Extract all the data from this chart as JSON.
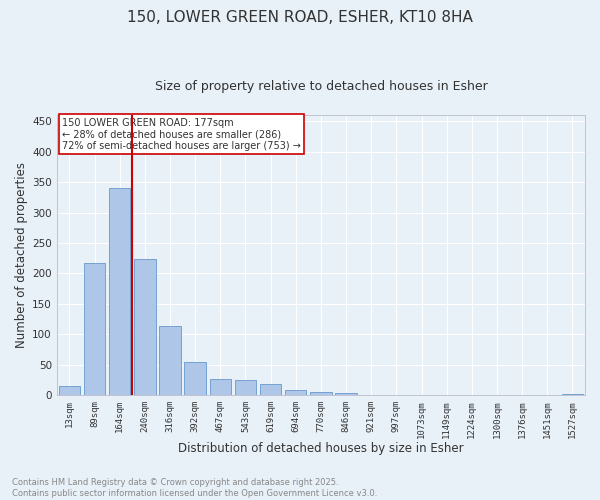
{
  "title1": "150, LOWER GREEN ROAD, ESHER, KT10 8HA",
  "title2": "Size of property relative to detached houses in Esher",
  "xlabel": "Distribution of detached houses by size in Esher",
  "ylabel": "Number of detached properties",
  "categories": [
    "13sqm",
    "89sqm",
    "164sqm",
    "240sqm",
    "316sqm",
    "392sqm",
    "467sqm",
    "543sqm",
    "619sqm",
    "694sqm",
    "770sqm",
    "846sqm",
    "921sqm",
    "997sqm",
    "1073sqm",
    "1149sqm",
    "1224sqm",
    "1300sqm",
    "1376sqm",
    "1451sqm",
    "1527sqm"
  ],
  "values": [
    15,
    217,
    340,
    223,
    113,
    55,
    27,
    26,
    19,
    9,
    6,
    4,
    0,
    0,
    0,
    0,
    1,
    0,
    0,
    0,
    2
  ],
  "bar_color": "#aec6e8",
  "bar_edge_color": "#6699cc",
  "vline_x": 2.5,
  "vline_color": "#cc0000",
  "annotation_text": "150 LOWER GREEN ROAD: 177sqm\n← 28% of detached houses are smaller (286)\n72% of semi-detached houses are larger (753) →",
  "annotation_box_color": "#ffffff",
  "annotation_box_edge_color": "#cc0000",
  "bg_color": "#e8f0f8",
  "grid_color": "#ffffff",
  "footer_text": "Contains HM Land Registry data © Crown copyright and database right 2025.\nContains public sector information licensed under the Open Government Licence v3.0.",
  "ylim": [
    0,
    460
  ],
  "yticks": [
    0,
    50,
    100,
    150,
    200,
    250,
    300,
    350,
    400,
    450
  ]
}
